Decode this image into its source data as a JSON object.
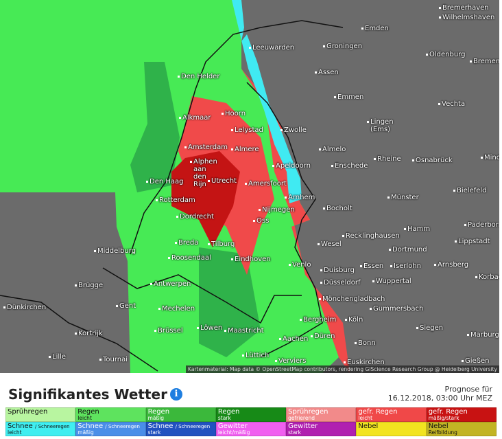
{
  "map": {
    "cities": [
      "Bremerhaven",
      "Wilhelmshaven",
      "Emden",
      "Leeuwarden",
      "Groningen",
      "Oldenburg",
      "Bremen",
      "Assen",
      "Den Helder",
      "Emmen",
      "Vechta",
      "Alkmaar",
      "Hoorn",
      "Lingen (Ems)",
      "Lelystad",
      "Zwolle",
      "Amsterdam",
      "Almere",
      "Almelo",
      "Rheine",
      "Osnabrück",
      "Minden",
      "Enschede",
      "Apeldoorn",
      "Alphen aan den Rijn",
      "Den Haag",
      "Utrecht",
      "Amersfoort",
      "Arnhem",
      "Münster",
      "Bielefeld",
      "Rotterdam",
      "Nijmegen",
      "Bocholt",
      "Dordrecht",
      "Oss",
      "Paderborn",
      "Hamm",
      "Recklinghausen",
      "Lippstadt",
      "Wesel",
      "Breda",
      "Tilburg",
      "Dortmund",
      "Middelburg",
      "Roosendaal",
      "Eindhoven",
      "Venlo",
      "Essen",
      "Iserlohn",
      "Arnsberg",
      "Duisburg",
      "Korbach",
      "Brügge",
      "Antwerpen",
      "Düsseldorf",
      "Wuppertal",
      "Mönchengladbach",
      "Dünkirchen",
      "Gent",
      "Mechelen",
      "Gummersbach",
      "Bergheim",
      "Köln",
      "Löwen",
      "Siegen",
      "Brüssel",
      "Maastricht",
      "Kortrijk",
      "Aachen",
      "Düren",
      "Marburg",
      "Bonn",
      "Lille",
      "Tournai",
      "Lüttich",
      "Gießen",
      "Verviers",
      "Euskirchen"
    ],
    "attribution": "Kartenmaterial: Map data © OpenStreetMap contributors, rendering GIScience Research Group @ Heidelberg University"
  },
  "header": {
    "title": "Signifikantes Wetter",
    "forecast_label": "Prognose für",
    "forecast_time": "16.12.2018, 03:00 Uhr MEZ"
  },
  "legend": {
    "rows": [
      [
        {
          "label": "Sprühregen",
          "color": "#b8f5a0"
        },
        {
          "label": "Regen",
          "sub": "leicht",
          "color": "#5ee35e"
        },
        {
          "label": "Regen",
          "sub": "mäßig",
          "color": "#3bb83b"
        },
        {
          "label": "Regen",
          "sub": "stark",
          "color": "#178a17"
        },
        {
          "label": "Sprühregen",
          "sub": "gefrierend",
          "color": "#f28a8a"
        },
        {
          "label": "gefr. Regen",
          "sub": "leicht",
          "color": "#f04848"
        },
        {
          "label": "gefr. Regen",
          "sub": "mäßig/stark",
          "color": "#c81212"
        }
      ],
      [
        {
          "label": "Schnee",
          "small": "/ Schneeregen",
          "sub": "leicht",
          "color": "#40eef0"
        },
        {
          "label": "Schnee",
          "small": "/ Schneeregen",
          "sub": "mäßig",
          "color": "#4a8ee8"
        },
        {
          "label": "Schnee",
          "small": "/ Schneeregen",
          "sub": "stark",
          "color": "#2252c0"
        },
        {
          "label": "Gewitter",
          "sub": "leicht/mäßig",
          "color": "#f060f0"
        },
        {
          "label": "Gewitter",
          "sub": "stark",
          "color": "#b020b0"
        },
        {
          "label": "Nebel",
          "color": "#f2e420"
        },
        {
          "label": "Nebel",
          "sub": "Reifbildung",
          "color": "#c2b424"
        }
      ]
    ]
  }
}
